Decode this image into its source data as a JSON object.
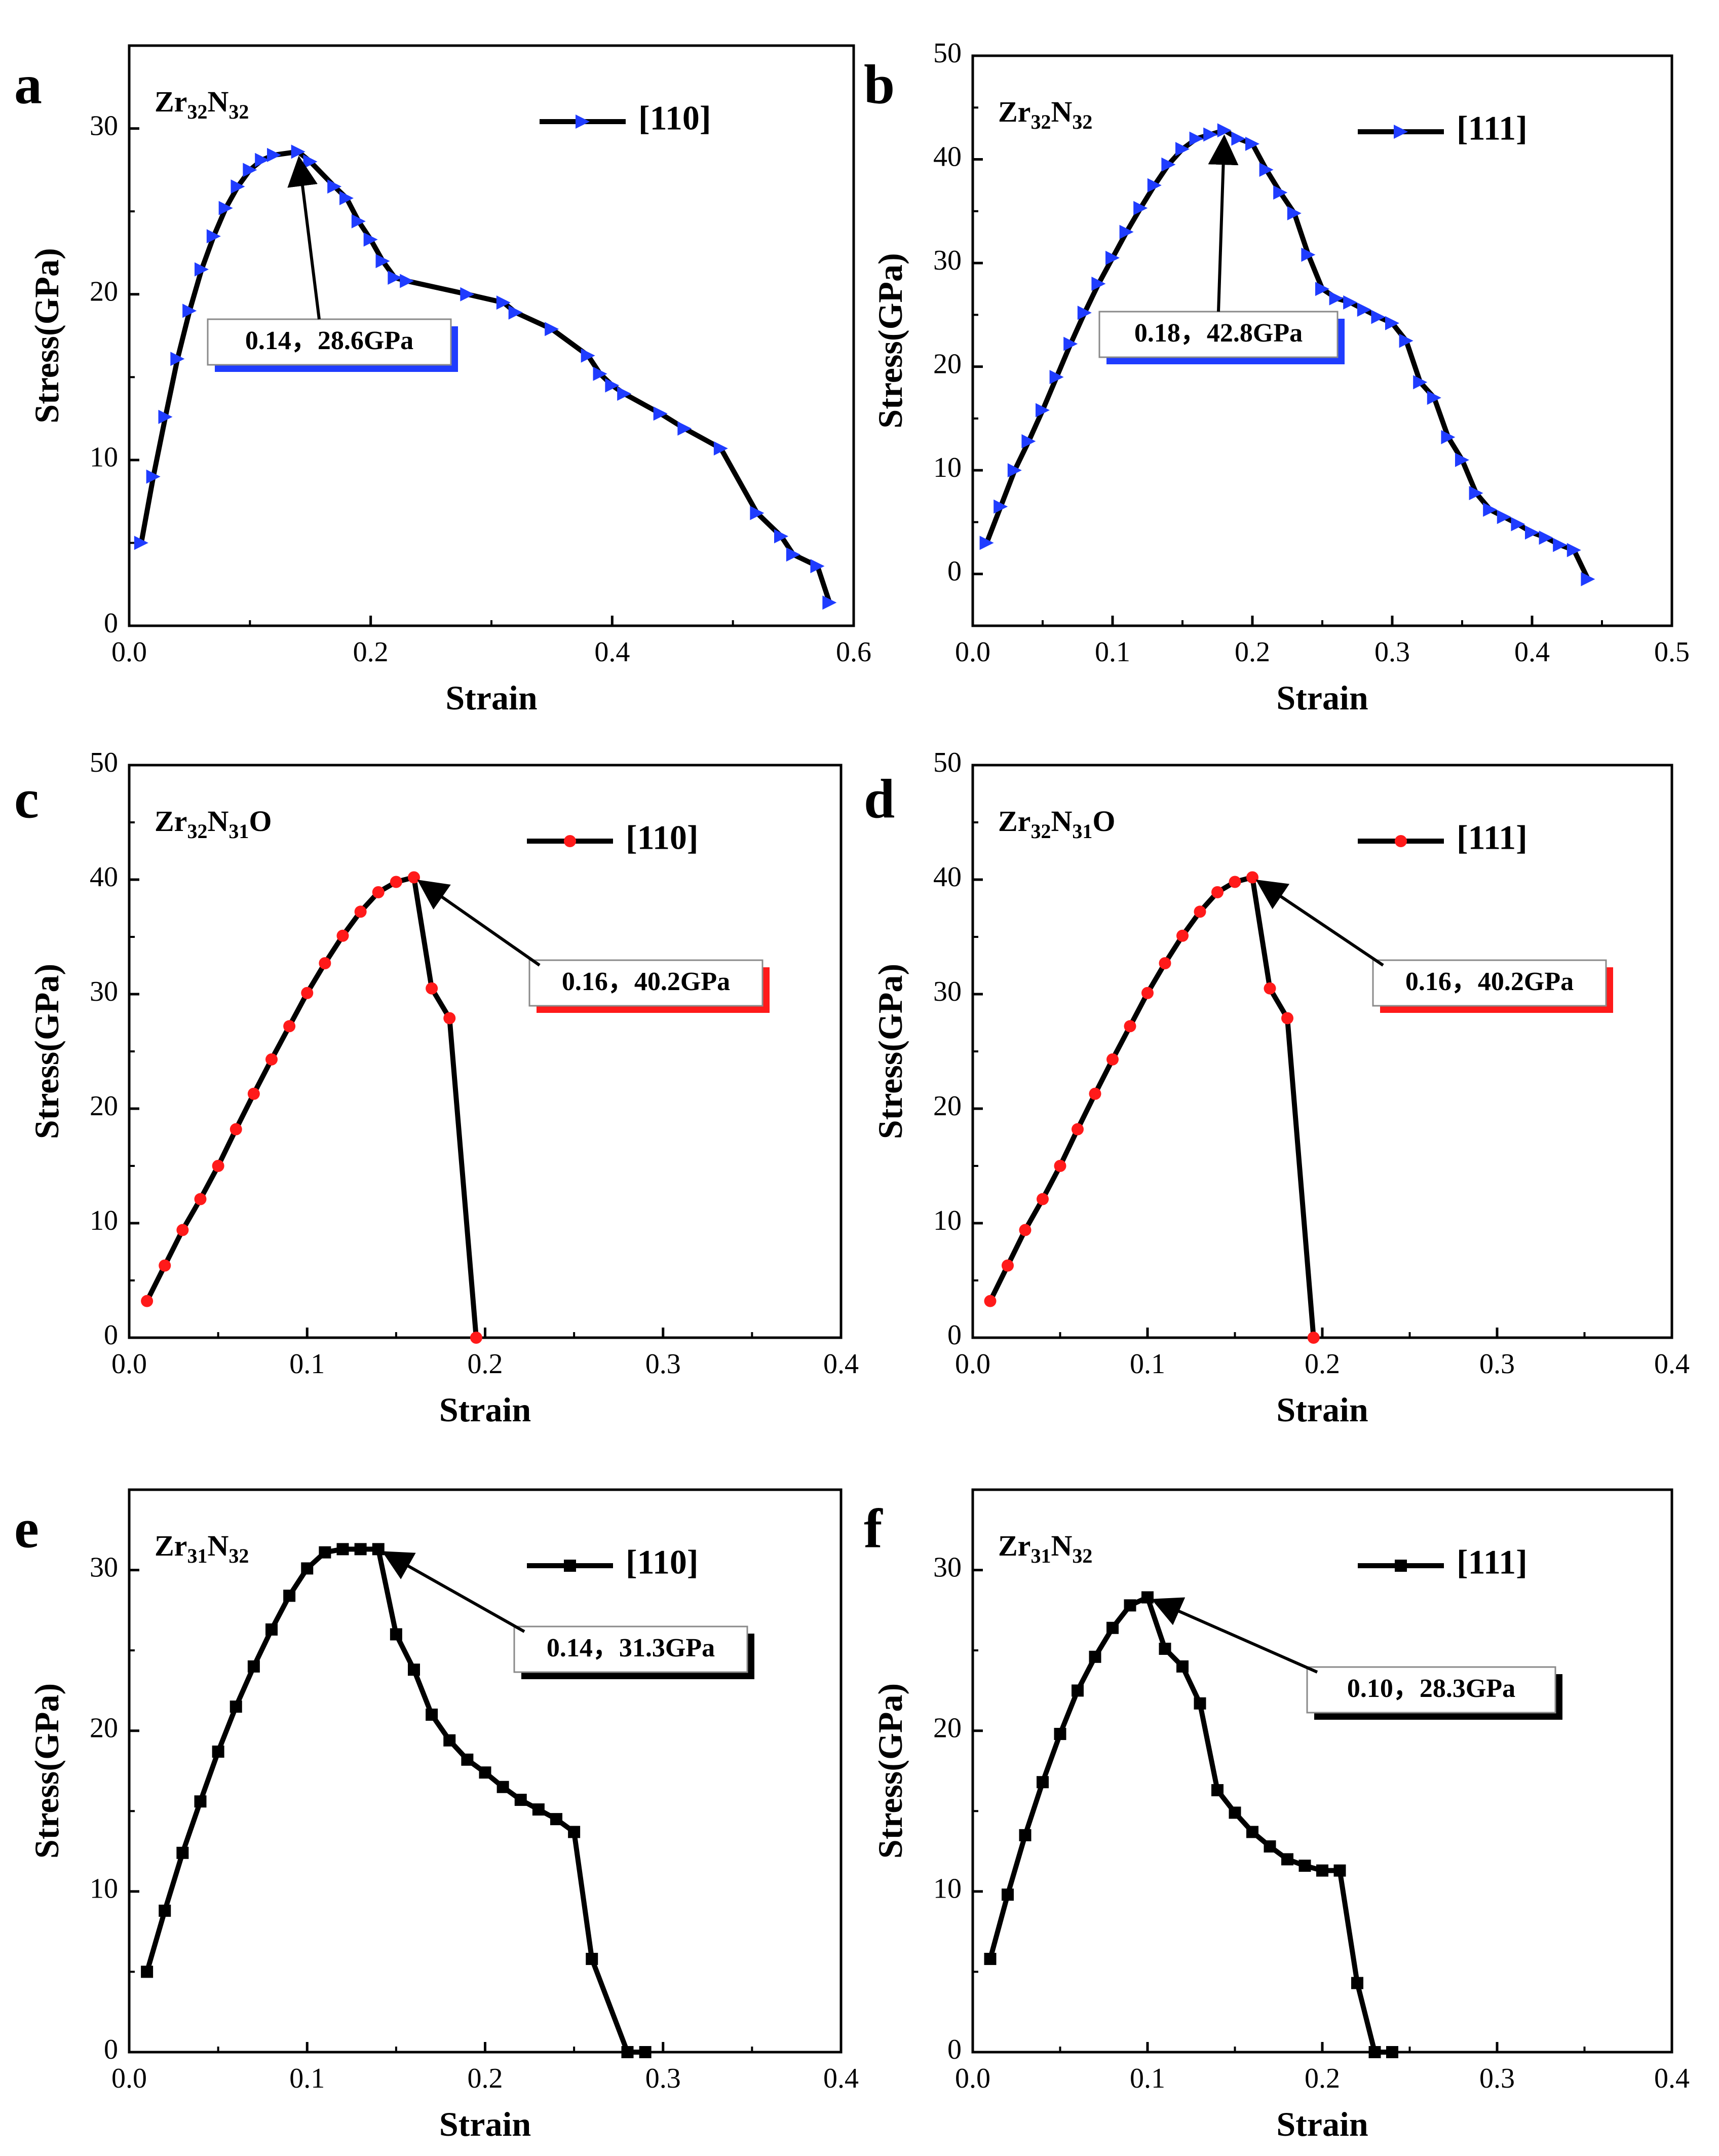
{
  "figure": {
    "axis_xlabel": "Strain",
    "axis_ylabel": "Stress(GPa)"
  },
  "chart_data": [
    {
      "type": "line",
      "panel_label": "a",
      "title": "Zr32N32",
      "title_parts": [
        "Zr",
        "32",
        "N",
        "32",
        ""
      ],
      "xlabel": "Strain",
      "ylabel": "Stress(GPa)",
      "xlim": [
        0,
        0.6
      ],
      "ylim": [
        0,
        35
      ],
      "xticks": [
        "0.0",
        "0.2",
        "0.4",
        "0.6"
      ],
      "yticks": [
        "0",
        "10",
        "20",
        "30"
      ],
      "ytick_values": [
        0,
        10,
        20,
        30
      ],
      "xtick_values": [
        0,
        0.2,
        0.4,
        0.6
      ],
      "marker": "triangle-right",
      "marker_color": "#1f3cff",
      "callout_color": "#1f3cff",
      "series": [
        {
          "name": "[110]",
          "x": [
            0.01,
            0.02,
            0.03,
            0.04,
            0.05,
            0.06,
            0.07,
            0.08,
            0.09,
            0.1,
            0.11,
            0.12,
            0.14,
            0.15,
            0.17,
            0.18,
            0.19,
            0.2,
            0.21,
            0.22,
            0.23,
            0.28,
            0.31,
            0.32,
            0.35,
            0.38,
            0.39,
            0.4,
            0.41,
            0.44,
            0.46,
            0.49,
            0.52,
            0.54,
            0.55,
            0.57,
            0.58
          ],
          "y": [
            5.0,
            9.0,
            12.6,
            16.1,
            19.0,
            21.5,
            23.5,
            25.2,
            26.5,
            27.5,
            28.1,
            28.4,
            28.6,
            28.0,
            26.5,
            25.8,
            24.4,
            23.3,
            22.0,
            21.0,
            20.8,
            20.0,
            19.5,
            18.9,
            17.9,
            16.3,
            15.2,
            14.5,
            14.0,
            12.8,
            11.9,
            10.7,
            6.8,
            5.4,
            4.3,
            3.6,
            1.4
          ]
        }
      ],
      "annotation": {
        "text": "0.14，28.6GPa",
        "x": 0.14,
        "y": 28.6
      }
    },
    {
      "type": "line",
      "panel_label": "b",
      "title": "Zr32N32",
      "title_parts": [
        "Zr",
        "32",
        "N",
        "32",
        ""
      ],
      "xlabel": "Strain",
      "ylabel": "Stress(GPa)",
      "xlim": [
        0,
        0.5
      ],
      "ylim": [
        -5,
        50
      ],
      "xticks": [
        "0.0",
        "0.1",
        "0.2",
        "0.3",
        "0.4",
        "0.5"
      ],
      "yticks": [
        "0",
        "10",
        "20",
        "30",
        "40",
        "50"
      ],
      "ytick_values": [
        0,
        10,
        20,
        30,
        40,
        50
      ],
      "xtick_values": [
        0,
        0.1,
        0.2,
        0.3,
        0.4,
        0.5
      ],
      "marker": "triangle-right",
      "marker_color": "#1f3cff",
      "callout_color": "#1f3cff",
      "series": [
        {
          "name": "[111]",
          "x": [
            0.01,
            0.02,
            0.03,
            0.04,
            0.05,
            0.06,
            0.07,
            0.08,
            0.09,
            0.1,
            0.11,
            0.12,
            0.13,
            0.14,
            0.15,
            0.16,
            0.17,
            0.18,
            0.19,
            0.2,
            0.21,
            0.22,
            0.23,
            0.24,
            0.25,
            0.26,
            0.27,
            0.28,
            0.29,
            0.3,
            0.31,
            0.32,
            0.33,
            0.34,
            0.35,
            0.36,
            0.37,
            0.38,
            0.39,
            0.4,
            0.41,
            0.42,
            0.43,
            0.44
          ],
          "y": [
            3.0,
            6.5,
            10.0,
            12.8,
            15.8,
            19.0,
            22.2,
            25.2,
            28.0,
            30.5,
            33.0,
            35.3,
            37.5,
            39.5,
            41.0,
            42.0,
            42.4,
            42.8,
            42.0,
            41.5,
            39.0,
            36.8,
            34.8,
            30.8,
            27.5,
            26.6,
            26.2,
            25.5,
            24.8,
            24.2,
            22.5,
            18.5,
            17.0,
            13.2,
            11.0,
            7.8,
            6.2,
            5.5,
            4.8,
            4.0,
            3.5,
            2.8,
            2.3,
            -0.5
          ]
        }
      ],
      "annotation": {
        "text": "0.18，42.8GPa",
        "x": 0.18,
        "y": 42.8
      }
    },
    {
      "type": "line",
      "panel_label": "c",
      "title": "Zr32N31O",
      "title_parts": [
        "Zr",
        "32",
        "N",
        "31",
        "O"
      ],
      "xlabel": "Strain",
      "ylabel": "Stress(GPa)",
      "xlim": [
        0,
        0.4
      ],
      "ylim": [
        0,
        50
      ],
      "xticks": [
        "0.0",
        "0.1",
        "0.2",
        "0.3",
        "0.4"
      ],
      "yticks": [
        "0",
        "10",
        "20",
        "30",
        "40",
        "50"
      ],
      "ytick_values": [
        0,
        10,
        20,
        30,
        40,
        50
      ],
      "xtick_values": [
        0,
        0.1,
        0.2,
        0.3,
        0.4
      ],
      "marker": "circle",
      "marker_color": "#ff1a1a",
      "callout_color": "#ff1a1a",
      "series": [
        {
          "name": "[110]",
          "x": [
            0.01,
            0.02,
            0.03,
            0.04,
            0.05,
            0.06,
            0.07,
            0.08,
            0.09,
            0.1,
            0.11,
            0.12,
            0.13,
            0.14,
            0.15,
            0.16,
            0.17,
            0.18,
            0.195
          ],
          "y": [
            3.2,
            6.3,
            9.4,
            12.1,
            15.0,
            18.2,
            21.3,
            24.3,
            27.2,
            30.1,
            32.7,
            35.1,
            37.2,
            38.9,
            39.8,
            40.2,
            30.5,
            27.9,
            0.0
          ]
        }
      ],
      "annotation": {
        "text": "0.16，40.2GPa",
        "x": 0.16,
        "y": 40.2
      }
    },
    {
      "type": "line",
      "panel_label": "d",
      "title": "Zr32N31O",
      "title_parts": [
        "Zr",
        "32",
        "N",
        "31",
        "O"
      ],
      "xlabel": "Strain",
      "ylabel": "Stress(GPa)",
      "xlim": [
        0,
        0.4
      ],
      "ylim": [
        0,
        50
      ],
      "xticks": [
        "0.0",
        "0.1",
        "0.2",
        "0.3",
        "0.4"
      ],
      "yticks": [
        "0",
        "10",
        "20",
        "30",
        "40",
        "50"
      ],
      "ytick_values": [
        0,
        10,
        20,
        30,
        40,
        50
      ],
      "xtick_values": [
        0,
        0.1,
        0.2,
        0.3,
        0.4
      ],
      "marker": "circle",
      "marker_color": "#ff1a1a",
      "callout_color": "#ff1a1a",
      "series": [
        {
          "name": "[111]",
          "x": [
            0.01,
            0.02,
            0.03,
            0.04,
            0.05,
            0.06,
            0.07,
            0.08,
            0.09,
            0.1,
            0.11,
            0.12,
            0.13,
            0.14,
            0.15,
            0.16,
            0.17,
            0.18,
            0.195
          ],
          "y": [
            3.2,
            6.3,
            9.4,
            12.1,
            15.0,
            18.2,
            21.3,
            24.3,
            27.2,
            30.1,
            32.7,
            35.1,
            37.2,
            38.9,
            39.8,
            40.2,
            30.5,
            27.9,
            0.0
          ]
        }
      ],
      "annotation": {
        "text": "0.16，40.2GPa",
        "x": 0.16,
        "y": 40.2
      }
    },
    {
      "type": "line",
      "panel_label": "e",
      "title": "Zr31N32",
      "title_parts": [
        "Zr",
        "31",
        "N",
        "32",
        ""
      ],
      "xlabel": "Strain",
      "ylabel": "Stress(GPa)",
      "xlim": [
        0,
        0.4
      ],
      "ylim": [
        0,
        35
      ],
      "xticks": [
        "0.0",
        "0.1",
        "0.2",
        "0.3",
        "0.4"
      ],
      "yticks": [
        "0",
        "10",
        "20",
        "30"
      ],
      "ytick_values": [
        0,
        10,
        20,
        30
      ],
      "xtick_values": [
        0,
        0.1,
        0.2,
        0.3,
        0.4
      ],
      "marker": "square",
      "marker_color": "#000000",
      "callout_color": "#000000",
      "series": [
        {
          "name": "[110]",
          "x": [
            0.01,
            0.02,
            0.03,
            0.04,
            0.05,
            0.06,
            0.07,
            0.08,
            0.09,
            0.1,
            0.11,
            0.12,
            0.13,
            0.14,
            0.15,
            0.16,
            0.17,
            0.18,
            0.19,
            0.2,
            0.21,
            0.22,
            0.23,
            0.24,
            0.25,
            0.26,
            0.28,
            0.29
          ],
          "y": [
            5.0,
            8.8,
            12.4,
            15.6,
            18.7,
            21.5,
            24.0,
            26.3,
            28.4,
            30.1,
            31.1,
            31.3,
            31.3,
            31.3,
            26.0,
            23.8,
            21.0,
            19.4,
            18.2,
            17.4,
            16.5,
            15.7,
            15.1,
            14.5,
            13.7,
            5.8,
            0.0,
            0.0
          ]
        }
      ],
      "annotation": {
        "text": "0.14，31.3GPa",
        "x": 0.14,
        "y": 31.3
      }
    },
    {
      "type": "line",
      "panel_label": "f",
      "title": "Zr31N32",
      "title_parts": [
        "Zr",
        "31",
        "N",
        "32",
        ""
      ],
      "xlabel": "Strain",
      "ylabel": "Stress(GPa)",
      "xlim": [
        0,
        0.4
      ],
      "ylim": [
        0,
        35
      ],
      "xticks": [
        "0.0",
        "0.1",
        "0.2",
        "0.3",
        "0.4"
      ],
      "yticks": [
        "0",
        "10",
        "20",
        "30"
      ],
      "ytick_values": [
        0,
        10,
        20,
        30
      ],
      "xtick_values": [
        0,
        0.1,
        0.2,
        0.3,
        0.4
      ],
      "marker": "square",
      "marker_color": "#000000",
      "callout_color": "#000000",
      "series": [
        {
          "name": "[111]",
          "x": [
            0.01,
            0.02,
            0.03,
            0.04,
            0.05,
            0.06,
            0.07,
            0.08,
            0.09,
            0.1,
            0.11,
            0.12,
            0.13,
            0.14,
            0.15,
            0.16,
            0.17,
            0.18,
            0.19,
            0.2,
            0.21,
            0.22,
            0.23,
            0.24
          ],
          "y": [
            5.8,
            9.8,
            13.5,
            16.8,
            19.8,
            22.5,
            24.6,
            26.4,
            27.8,
            28.3,
            25.1,
            24.0,
            21.7,
            16.3,
            14.9,
            13.7,
            12.8,
            12.0,
            11.6,
            11.3,
            11.3,
            4.3,
            0.0,
            0.0
          ]
        }
      ],
      "annotation": {
        "text": "0.10，28.3GPa",
        "x": 0.1,
        "y": 28.3
      }
    }
  ]
}
